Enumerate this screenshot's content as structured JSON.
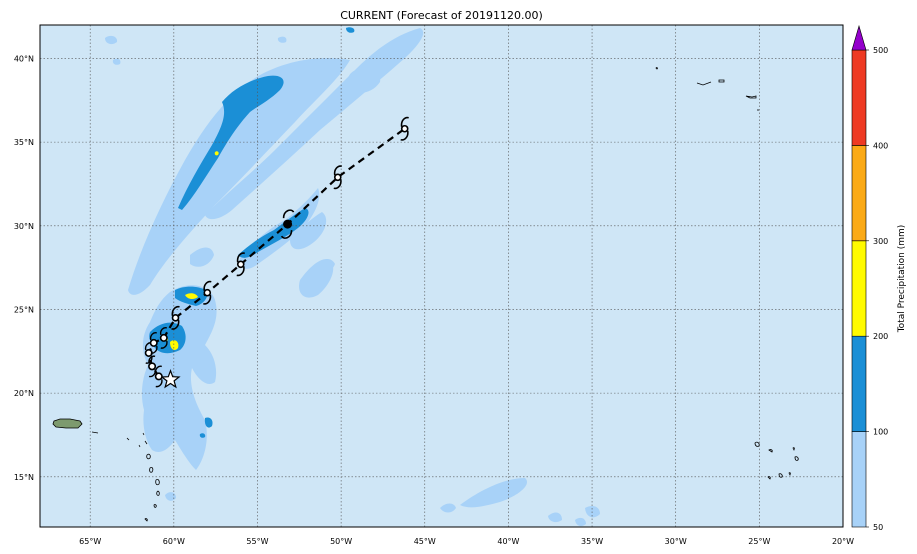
{
  "title": "CURRENT (Forecast of 20191120.00)",
  "map": {
    "lon_range": [
      -68,
      -20
    ],
    "lat_range": [
      12,
      42
    ],
    "ocean_color": "#cfe6f6",
    "gridlines": "dotted",
    "lon_ticks": [
      "65°W",
      "60°W",
      "55°W",
      "50°W",
      "45°W",
      "40°W",
      "35°W",
      "30°W",
      "25°W",
      "20°W"
    ],
    "lat_ticks": [
      "40°N",
      "35°N",
      "30°N",
      "25°N",
      "20°N",
      "15°N"
    ]
  },
  "colorbar": {
    "label": "Total Precipitation (mm)",
    "tick_labels": [
      "50",
      "100",
      "200",
      "300",
      "400",
      "500"
    ],
    "colors": [
      "#a8d2f8",
      "#1b8fd6",
      "#fffb00",
      "#fbaa17",
      "#ee3a23",
      "#9400cc"
    ],
    "extend": "max"
  },
  "track": {
    "style": "dashed",
    "positions": [
      {
        "lon": -60.2,
        "lat": 20.8,
        "marker": "star"
      },
      {
        "lon": -60.9,
        "lat": 21.0,
        "marker": "open-circle"
      },
      {
        "lon": -61.3,
        "lat": 21.6,
        "marker": "open-circle"
      },
      {
        "lon": -61.5,
        "lat": 22.4,
        "marker": "open-circle"
      },
      {
        "lon": -61.2,
        "lat": 23.0,
        "marker": "open-circle"
      },
      {
        "lon": -60.6,
        "lat": 23.3,
        "marker": "open-circle"
      },
      {
        "lon": -59.9,
        "lat": 24.5,
        "marker": "storm-symbol"
      },
      {
        "lon": -58.0,
        "lat": 26.0,
        "marker": "storm-symbol"
      },
      {
        "lon": -56.0,
        "lat": 27.7,
        "marker": "storm-symbol"
      },
      {
        "lon": -53.2,
        "lat": 30.1,
        "marker": "filled-circle"
      },
      {
        "lon": -50.2,
        "lat": 32.9,
        "marker": "storm-symbol"
      },
      {
        "lon": -46.2,
        "lat": 35.8,
        "marker": "storm-symbol"
      }
    ]
  }
}
